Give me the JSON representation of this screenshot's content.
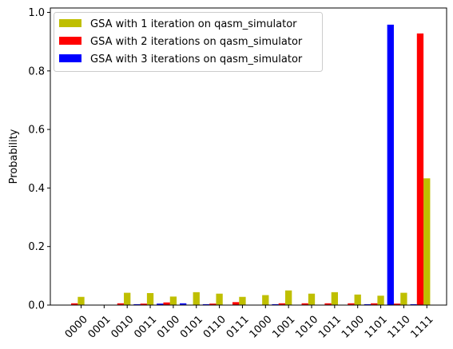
{
  "chart_data": {
    "type": "bar",
    "title": "",
    "xlabel": "",
    "ylabel": "Probability",
    "ylim": [
      0,
      1.0
    ],
    "yticks": [
      "0.0",
      "0.2",
      "0.4",
      "0.6",
      "0.8",
      "1.0"
    ],
    "categories": [
      "0000",
      "0001",
      "0010",
      "0011",
      "0100",
      "0101",
      "0110",
      "0111",
      "1000",
      "1001",
      "1010",
      "1011",
      "1100",
      "1101",
      "1110",
      "1111"
    ],
    "legend_position": "top-left",
    "grid": false,
    "series": [
      {
        "name": "GSA with 1 iteration on qasm_simulator",
        "color": "#bfbf00",
        "values": [
          0.028,
          0.0,
          0.042,
          0.041,
          0.029,
          0.044,
          0.039,
          0.028,
          0.034,
          0.05,
          0.039,
          0.044,
          0.036,
          0.032,
          0.042,
          0.433
        ]
      },
      {
        "name": "GSA with 2 iterations on qasm_simulator",
        "color": "#ff0000",
        "values": [
          0.006,
          0.0,
          0.006,
          0.005,
          0.009,
          0.0,
          0.005,
          0.01,
          0.0,
          0.006,
          0.006,
          0.006,
          0.006,
          0.006,
          0.005,
          0.928
        ]
      },
      {
        "name": "GSA with 3 iterations on qasm_simulator",
        "color": "#0000ff",
        "values": [
          0.0,
          0.0,
          0.0,
          0.003,
          0.005,
          0.006,
          0.003,
          0.0,
          0.0,
          0.003,
          0.0,
          0.0,
          0.0,
          0.003,
          0.958,
          0.003
        ]
      }
    ]
  }
}
